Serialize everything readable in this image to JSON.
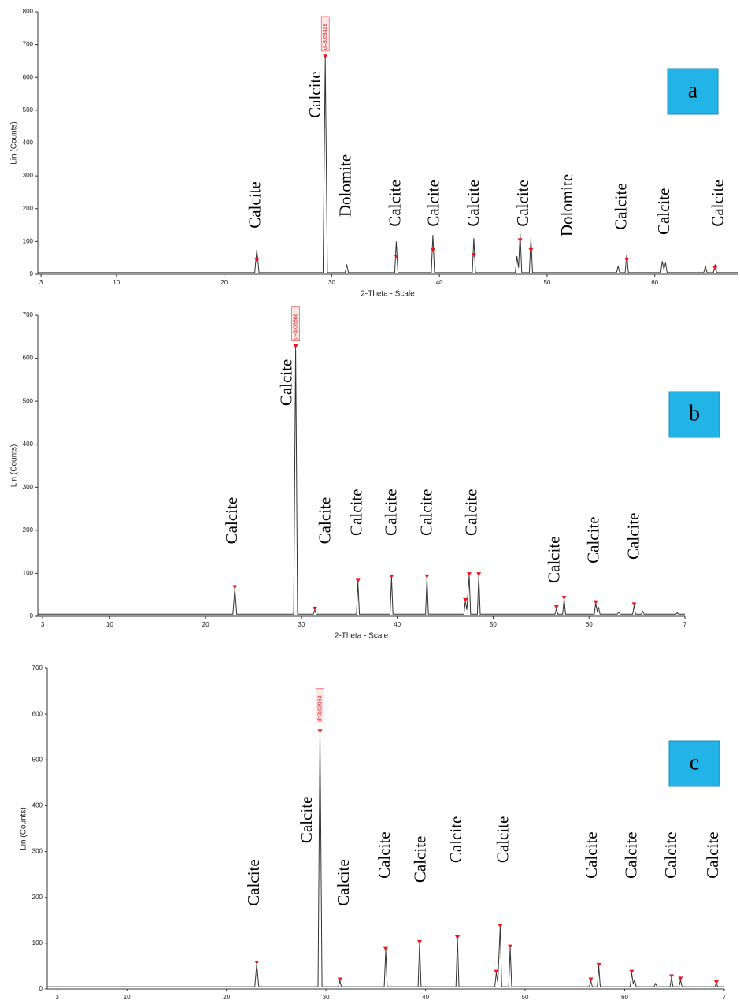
{
  "chart_data": [
    {
      "type": "line",
      "label": "a",
      "xlabel": "2-Theta - Scale",
      "ylabel": "Lin (Counts)",
      "xlim": [
        2.7,
        67.7
      ],
      "ylim": [
        0,
        800
      ],
      "xticks": [
        3,
        10,
        20,
        30,
        40,
        50,
        60
      ],
      "yticks": [
        0,
        100,
        200,
        300,
        400,
        500,
        600,
        700,
        800
      ],
      "color": "#333333",
      "x": [
        2.7,
        22.85,
        23.05,
        23.25,
        29.2,
        29.4,
        29.6,
        31.25,
        31.4,
        31.55,
        35.85,
        36.0,
        36.15,
        39.25,
        39.4,
        39.55,
        43.05,
        43.2,
        43.35,
        47.05,
        47.2,
        47.35,
        47.5,
        47.65,
        48.35,
        48.5,
        48.65,
        56.45,
        56.6,
        56.75,
        57.25,
        57.4,
        57.55,
        60.55,
        60.7,
        60.85,
        61.0,
        61.15,
        64.55,
        64.7,
        64.85,
        65.45,
        65.6,
        65.75,
        67.7
      ],
      "values": [
        5,
        5,
        75,
        5,
        5,
        660,
        5,
        5,
        30,
        5,
        5,
        100,
        5,
        5,
        120,
        5,
        5,
        110,
        5,
        5,
        55,
        20,
        125,
        5,
        5,
        110,
        5,
        5,
        25,
        5,
        5,
        60,
        5,
        5,
        40,
        15,
        35,
        5,
        5,
        25,
        5,
        5,
        30,
        5,
        5
      ],
      "peaks": {
        "color": "#e8141c",
        "x": [
          23.05,
          29.4,
          36.0,
          39.4,
          43.2,
          47.5,
          48.5,
          57.4,
          65.6
        ],
        "values": [
          40,
          660,
          50,
          70,
          55,
          100,
          70,
          40,
          15
        ]
      },
      "peak_labels": [
        {
          "text": "d=3.03428",
          "x": 29.4,
          "y": 680
        }
      ],
      "annotations": [
        {
          "text": "Calcite",
          "x": 23.0,
          "y": 140
        },
        {
          "text": "Calcite",
          "x": 28.6,
          "y": 476
        },
        {
          "text": "Dolomite",
          "x": 31.4,
          "y": 175
        },
        {
          "text": "Calcite",
          "x": 36.0,
          "y": 145
        },
        {
          "text": "Calcite",
          "x": 39.6,
          "y": 145
        },
        {
          "text": "Calcite",
          "x": 43.3,
          "y": 145
        },
        {
          "text": "Calcite",
          "x": 47.9,
          "y": 145
        },
        {
          "text": "Dolomite",
          "x": 52.0,
          "y": 115
        },
        {
          "text": "Calcite",
          "x": 57.0,
          "y": 135
        },
        {
          "text": "Calcite",
          "x": 61.0,
          "y": 120
        },
        {
          "text": "Calcite",
          "x": 66.0,
          "y": 145
        }
      ]
    },
    {
      "type": "line",
      "label": "b",
      "xlabel": "2-Theta - Scale",
      "ylabel": "Lin (Counts)",
      "xlim": [
        2.5,
        70
      ],
      "ylim": [
        0,
        700
      ],
      "xticks": [
        3,
        10,
        20,
        30,
        40,
        50,
        60,
        {
          "value": 70,
          "label": "7"
        }
      ],
      "yticks": [
        0,
        100,
        200,
        300,
        400,
        500,
        600,
        700
      ],
      "color": "#333333",
      "x": [
        2.5,
        22.85,
        23.05,
        23.25,
        29.2,
        29.4,
        29.6,
        31.25,
        31.4,
        31.55,
        35.75,
        35.9,
        36.05,
        39.25,
        39.4,
        39.55,
        42.95,
        43.1,
        43.25,
        46.95,
        47.1,
        47.25,
        47.5,
        47.65,
        48.35,
        48.5,
        48.65,
        56.45,
        56.6,
        56.75,
        57.25,
        57.4,
        57.55,
        60.55,
        60.7,
        60.85,
        61.0,
        61.15,
        62.95,
        63.1,
        63.25,
        64.55,
        64.7,
        64.85,
        65.45,
        65.6,
        65.75,
        69.05,
        69.2,
        69.35,
        70
      ],
      "values": [
        5,
        5,
        65,
        5,
        5,
        625,
        5,
        5,
        15,
        5,
        5,
        80,
        5,
        5,
        90,
        5,
        5,
        90,
        5,
        5,
        35,
        15,
        95,
        5,
        5,
        95,
        5,
        5,
        18,
        5,
        5,
        40,
        5,
        5,
        30,
        12,
        20,
        5,
        5,
        10,
        5,
        5,
        25,
        5,
        5,
        12,
        5,
        5,
        8,
        5,
        5
      ],
      "peaks": {
        "color": "#e8141c",
        "x": [
          23.05,
          29.4,
          31.4,
          35.9,
          39.4,
          43.1,
          47.1,
          47.5,
          48.5,
          56.6,
          57.4,
          60.7,
          64.7
        ],
        "values": [
          65,
          625,
          15,
          80,
          90,
          90,
          35,
          95,
          95,
          18,
          40,
          30,
          25
        ]
      },
      "peak_labels": [
        {
          "text": "d=3.03668",
          "x": 29.4,
          "y": 640
        }
      ],
      "annotations": [
        {
          "text": "Calcite",
          "x": 22.9,
          "y": 168
        },
        {
          "text": "Calcite",
          "x": 28.6,
          "y": 489
        },
        {
          "text": "Calcite",
          "x": 32.6,
          "y": 168
        },
        {
          "text": "Calcite",
          "x": 35.9,
          "y": 187
        },
        {
          "text": "Calcite",
          "x": 39.5,
          "y": 187
        },
        {
          "text": "Calcite",
          "x": 43.2,
          "y": 187
        },
        {
          "text": "Calcite",
          "x": 47.9,
          "y": 187
        },
        {
          "text": "Calcite",
          "x": 56.5,
          "y": 77
        },
        {
          "text": "Calcite",
          "x": 60.6,
          "y": 123
        },
        {
          "text": "Calcite",
          "x": 64.8,
          "y": 132
        }
      ]
    },
    {
      "type": "line",
      "label": "c",
      "xlabel": "2-Theta - Scale",
      "ylabel": "Lin (Counts)",
      "xlim": [
        2,
        70
      ],
      "ylim": [
        0,
        700
      ],
      "xticks": [
        3,
        10,
        20,
        30,
        40,
        50,
        60,
        {
          "value": 70,
          "label": "7"
        }
      ],
      "yticks": [
        0,
        100,
        200,
        300,
        400,
        500,
        600,
        700
      ],
      "color": "#333333",
      "x": [
        2,
        22.85,
        23.05,
        23.25,
        29.2,
        29.4,
        29.6,
        31.25,
        31.4,
        31.55,
        35.85,
        36.0,
        36.15,
        39.25,
        39.4,
        39.55,
        43.05,
        43.2,
        43.35,
        46.95,
        47.1,
        47.25,
        47.5,
        47.65,
        48.35,
        48.5,
        48.65,
        56.45,
        56.6,
        56.75,
        57.25,
        57.4,
        57.55,
        60.55,
        60.7,
        60.85,
        61.0,
        61.15,
        62.95,
        63.1,
        63.25,
        64.55,
        64.7,
        64.85,
        65.45,
        65.6,
        65.75,
        69.05,
        69.2,
        69.35,
        70
      ],
      "values": [
        5,
        5,
        55,
        5,
        5,
        560,
        5,
        5,
        18,
        5,
        5,
        85,
        5,
        5,
        100,
        5,
        5,
        110,
        5,
        5,
        35,
        15,
        135,
        5,
        5,
        90,
        5,
        5,
        18,
        5,
        5,
        50,
        5,
        5,
        35,
        12,
        20,
        5,
        5,
        12,
        5,
        5,
        25,
        5,
        5,
        20,
        5,
        5,
        12,
        5,
        5
      ],
      "peaks": {
        "color": "#e8141c",
        "x": [
          23.05,
          29.4,
          31.4,
          36.0,
          39.4,
          43.2,
          47.1,
          47.5,
          48.5,
          56.6,
          57.4,
          60.7,
          64.7,
          65.6,
          69.2
        ],
        "values": [
          55,
          560,
          18,
          85,
          100,
          110,
          35,
          135,
          90,
          18,
          50,
          35,
          25,
          20,
          12
        ]
      },
      "peak_labels": [
        {
          "text": "d=3.03963",
          "x": 29.4,
          "y": 580
        }
      ],
      "annotations": [
        {
          "text": "Calcite",
          "x": 22.9,
          "y": 181
        },
        {
          "text": "Calcite",
          "x": 28.2,
          "y": 318
        },
        {
          "text": "Calcite",
          "x": 31.9,
          "y": 181
        },
        {
          "text": "Calcite",
          "x": 36.0,
          "y": 241
        },
        {
          "text": "Calcite",
          "x": 39.6,
          "y": 232
        },
        {
          "text": "Calcite",
          "x": 43.2,
          "y": 275
        },
        {
          "text": "Calcite",
          "x": 47.9,
          "y": 275
        },
        {
          "text": "Calcite",
          "x": 56.8,
          "y": 241
        },
        {
          "text": "Calcite",
          "x": 60.8,
          "y": 241
        },
        {
          "text": "Calcite",
          "x": 64.8,
          "y": 241
        },
        {
          "text": "Calcite",
          "x": 69.0,
          "y": 241
        }
      ]
    }
  ]
}
